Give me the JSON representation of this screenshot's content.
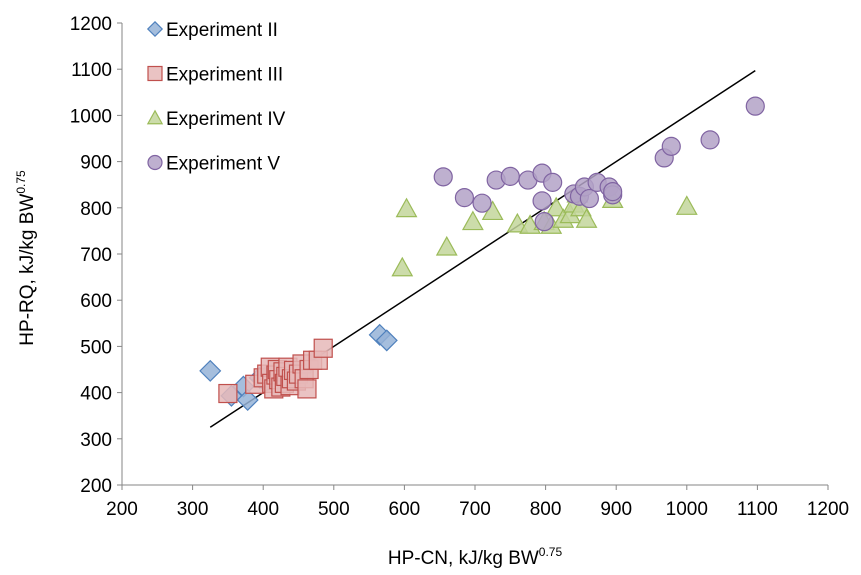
{
  "chart_data": {
    "type": "scatter",
    "title": "",
    "xlabel": {
      "main": "HP-CN, kJ/kg BW",
      "sup": "0.75"
    },
    "ylabel": {
      "main": "HP-RQ, kJ/kg BW",
      "sup": "0.75"
    },
    "xlim": [
      200,
      1200
    ],
    "ylim": [
      200,
      1200
    ],
    "xticks": [
      200,
      300,
      400,
      500,
      600,
      700,
      800,
      900,
      1000,
      1100,
      1200
    ],
    "yticks": [
      200,
      300,
      400,
      500,
      600,
      700,
      800,
      900,
      1000,
      1100,
      1200
    ],
    "grid": false,
    "legend_position": "top-left",
    "series": [
      {
        "name": "Experiment II",
        "marker": "diamond",
        "fill": "#95b3d7",
        "stroke": "#4f81bd",
        "points": [
          [
            325,
            447
          ],
          [
            355,
            393
          ],
          [
            372,
            413
          ],
          [
            378,
            384
          ],
          [
            395,
            432
          ],
          [
            400,
            428
          ],
          [
            405,
            437
          ],
          [
            565,
            525
          ],
          [
            575,
            513
          ]
        ]
      },
      {
        "name": "Experiment III",
        "marker": "square",
        "fill": "#e6b9b8",
        "stroke": "#c0504d",
        "points": [
          [
            350,
            398
          ],
          [
            388,
            418
          ],
          [
            400,
            432
          ],
          [
            405,
            440
          ],
          [
            410,
            455
          ],
          [
            412,
            420
          ],
          [
            415,
            408
          ],
          [
            418,
            438
          ],
          [
            420,
            450
          ],
          [
            422,
            428
          ],
          [
            425,
            412
          ],
          [
            428,
            445
          ],
          [
            430,
            420
          ],
          [
            432,
            435
          ],
          [
            435,
            455
          ],
          [
            438,
            415
          ],
          [
            440,
            430
          ],
          [
            443,
            448
          ],
          [
            447,
            425
          ],
          [
            450,
            440
          ],
          [
            455,
            462
          ],
          [
            458,
            430
          ],
          [
            462,
            408
          ],
          [
            465,
            450
          ],
          [
            470,
            470
          ],
          [
            478,
            470
          ],
          [
            485,
            496
          ]
        ]
      },
      {
        "name": "Experiment IV",
        "marker": "triangle",
        "fill": "#c3d69b",
        "stroke": "#9bbb59",
        "points": [
          [
            597,
            670
          ],
          [
            603,
            798
          ],
          [
            660,
            715
          ],
          [
            697,
            770
          ],
          [
            725,
            792
          ],
          [
            760,
            765
          ],
          [
            778,
            762
          ],
          [
            798,
            770
          ],
          [
            808,
            762
          ],
          [
            815,
            800
          ],
          [
            825,
            775
          ],
          [
            835,
            785
          ],
          [
            840,
            808
          ],
          [
            845,
            830
          ],
          [
            850,
            800
          ],
          [
            858,
            775
          ],
          [
            895,
            818
          ],
          [
            1000,
            803
          ]
        ]
      },
      {
        "name": "Experiment V",
        "marker": "circle",
        "fill": "#b3a2c7",
        "stroke": "#8064a2",
        "points": [
          [
            655,
            867
          ],
          [
            685,
            822
          ],
          [
            710,
            810
          ],
          [
            730,
            860
          ],
          [
            750,
            868
          ],
          [
            775,
            860
          ],
          [
            795,
            875
          ],
          [
            810,
            855
          ],
          [
            795,
            815
          ],
          [
            798,
            770
          ],
          [
            840,
            830
          ],
          [
            848,
            825
          ],
          [
            855,
            845
          ],
          [
            862,
            820
          ],
          [
            873,
            855
          ],
          [
            890,
            845
          ],
          [
            895,
            828
          ],
          [
            895,
            835
          ],
          [
            968,
            908
          ],
          [
            978,
            933
          ],
          [
            1033,
            947
          ],
          [
            1097,
            1020
          ]
        ]
      }
    ],
    "trendline": {
      "x": [
        325,
        1097
      ],
      "y": [
        325,
        1097
      ]
    }
  },
  "colors": {
    "axis": "#868686",
    "trendline": "#000000",
    "background": "#ffffff"
  }
}
